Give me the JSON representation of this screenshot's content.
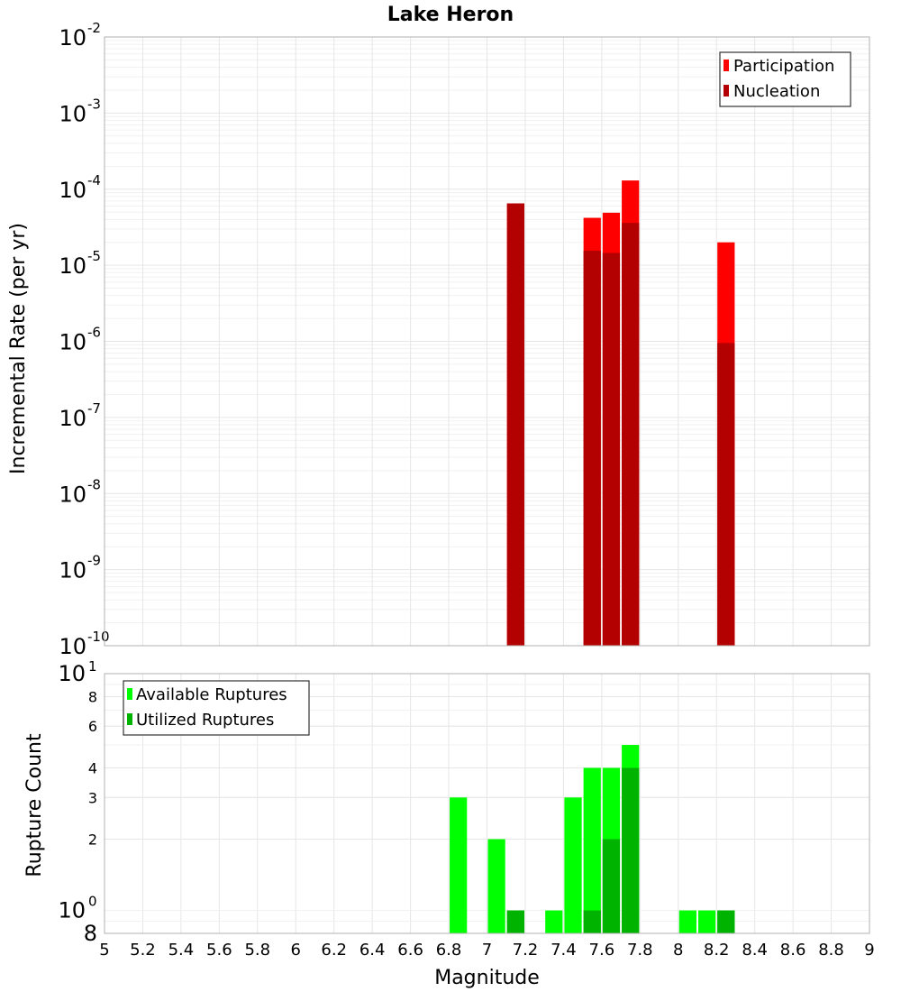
{
  "title": "Lake Heron",
  "colors": {
    "participation": "#ff0000",
    "nucleation": "#b30000",
    "available": "#00ff00",
    "utilized": "#00b300",
    "grid": "#e6e6e6",
    "minor_grid": "#f1f1f1",
    "frame": "#b0b0b0"
  },
  "chart_data": [
    {
      "type": "bar",
      "ylabel": "Incremental Rate (per yr)",
      "xlabel": "",
      "yscale": "log",
      "ylim": [
        1e-10,
        0.01
      ],
      "xlim": [
        5,
        9
      ],
      "legend_position": "top-right",
      "y_tick_labels": [
        {
          "base": "10",
          "exp": "-2"
        },
        {
          "base": "10",
          "exp": "-3"
        },
        {
          "base": "10",
          "exp": "-4"
        },
        {
          "base": "10",
          "exp": "-5"
        },
        {
          "base": "10",
          "exp": "-6"
        },
        {
          "base": "10",
          "exp": "-7"
        },
        {
          "base": "10",
          "exp": "-8"
        },
        {
          "base": "10",
          "exp": "-9"
        },
        {
          "base": "10",
          "exp": "-10"
        }
      ],
      "series": [
        {
          "name": "Participation",
          "color_key": "participation",
          "x": [
            7.15,
            7.55,
            7.65,
            7.75,
            8.25
          ],
          "values": [
            6.5e-05,
            4.2e-05,
            4.9e-05,
            0.00013,
            2e-05
          ]
        },
        {
          "name": "Nucleation",
          "color_key": "nucleation",
          "x": [
            7.15,
            7.55,
            7.65,
            7.75,
            8.25
          ],
          "values": [
            6.5e-05,
            1.55e-05,
            1.45e-05,
            3.6e-05,
            9.5e-07
          ]
        }
      ]
    },
    {
      "type": "bar",
      "ylabel": "Rupture Count",
      "xlabel": "Magnitude",
      "yscale": "log",
      "ylim": [
        0.8,
        10
      ],
      "xlim": [
        5,
        9
      ],
      "legend_position": "top-left",
      "x_ticks": [
        "5",
        "5.2",
        "5.4",
        "5.6",
        "5.8",
        "6",
        "6.2",
        "6.4",
        "6.6",
        "6.8",
        "7",
        "7.2",
        "7.4",
        "7.6",
        "7.8",
        "8",
        "8.2",
        "8.4",
        "8.6",
        "8.8",
        "9"
      ],
      "y_ticks_small": [
        {
          "value": 8,
          "label": "8"
        },
        {
          "value": 6,
          "label": "6"
        },
        {
          "value": 4,
          "label": "4"
        },
        {
          "value": 3,
          "label": "3"
        },
        {
          "value": 2,
          "label": "2"
        }
      ],
      "y_tick_top": {
        "base": "10",
        "exp": "1"
      },
      "y_tick_mid": {
        "base": "10",
        "exp": "0"
      },
      "y_tick_bottom": "8",
      "series": [
        {
          "name": "Available Ruptures",
          "color_key": "available",
          "x": [
            6.85,
            7.05,
            7.15,
            7.35,
            7.45,
            7.55,
            7.65,
            7.75,
            8.05,
            8.15,
            8.25
          ],
          "values": [
            3,
            2,
            1,
            1,
            3,
            4,
            4,
            5,
            1,
            1,
            1
          ]
        },
        {
          "name": "Utilized Ruptures",
          "color_key": "utilized",
          "x": [
            7.15,
            7.55,
            7.65,
            7.75,
            8.25
          ],
          "values": [
            1,
            1,
            2,
            4,
            1
          ]
        }
      ]
    }
  ]
}
